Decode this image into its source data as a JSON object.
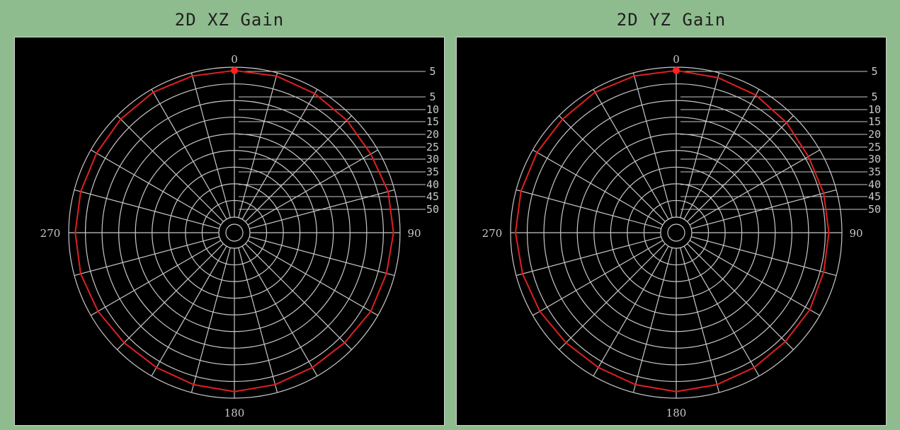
{
  "chart_data": [
    {
      "type": "polar-line",
      "title": "2D XZ Gain",
      "angle_labels": [
        "0",
        "90",
        "180",
        "270"
      ],
      "radial_labels": [
        "5",
        "5",
        "10",
        "15",
        "20",
        "25",
        "30",
        "35",
        "40",
        "45",
        "50"
      ],
      "series": [
        {
          "color": "#e02020",
          "theta": [
            0,
            15,
            30,
            45,
            60,
            75,
            90,
            105,
            120,
            135,
            150,
            165,
            180,
            195,
            210,
            225,
            240,
            255,
            270,
            285,
            300,
            315,
            330,
            345
          ],
          "r": [
            1.0,
            1.0,
            0.99,
            0.98,
            0.97,
            0.98,
            0.98,
            0.97,
            0.97,
            0.96,
            0.96,
            0.97,
            0.98,
            0.97,
            0.96,
            0.96,
            0.97,
            0.98,
            0.98,
            0.98,
            0.98,
            0.99,
            1.0,
            1.0
          ]
        }
      ]
    },
    {
      "type": "polar-line",
      "title": "2D YZ Gain",
      "angle_labels": [
        "0",
        "90",
        "180",
        "270"
      ],
      "radial_labels": [
        "5",
        "5",
        "10",
        "15",
        "20",
        "25",
        "30",
        "35",
        "40",
        "45",
        "50"
      ],
      "series": [
        {
          "color": "#e02020",
          "theta": [
            0,
            15,
            30,
            45,
            60,
            75,
            90,
            105,
            120,
            135,
            150,
            165,
            180,
            195,
            210,
            225,
            240,
            255,
            270,
            285,
            300,
            315,
            330,
            345
          ],
          "r": [
            1.0,
            0.99,
            0.98,
            0.96,
            0.94,
            0.94,
            0.94,
            0.94,
            0.95,
            0.95,
            0.96,
            0.97,
            0.98,
            0.97,
            0.96,
            0.96,
            0.97,
            0.98,
            0.99,
            0.99,
            0.99,
            0.99,
            1.0,
            1.0
          ]
        }
      ]
    }
  ],
  "colors": {
    "background": "#8fbc8f",
    "plot_background": "#000000",
    "grid": "#c8c8c8",
    "trace": "#e02020",
    "marker": "#ff2020"
  }
}
